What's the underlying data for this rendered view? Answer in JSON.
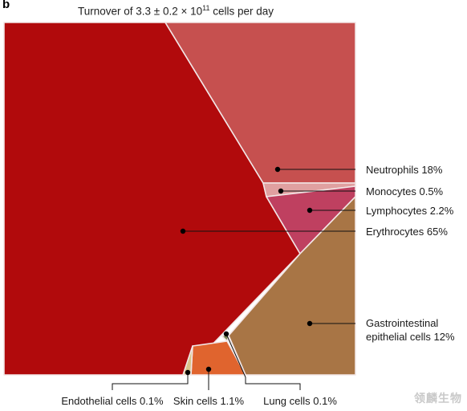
{
  "panel_label": "b",
  "chart_data": {
    "type": "treemap",
    "title": {
      "prefix": "Turnover of 3.3 ± 0.2 × 10",
      "exponent": "11",
      "suffix": " cells per day"
    },
    "categories": [
      "Erythrocytes",
      "Neutrophils",
      "Monocytes",
      "Lymphocytes",
      "Gastrointestinal epithelial cells",
      "Lung cells",
      "Skin cells",
      "Endothelial cells"
    ],
    "values": [
      65,
      18,
      0.5,
      2.2,
      12,
      0.1,
      1.1,
      0.1
    ],
    "unit": "%",
    "labels": [
      "Erythrocytes 65%",
      "Neutrophils 18%",
      "Monocytes 0.5%",
      "Lymphocytes 2.2%",
      "Gastrointestinal epithelial cells 12%",
      "Lung cells 0.1%",
      "Skin cells 1.1%",
      "Endothelial cells 0.1%"
    ],
    "label_lines": [
      [
        "Erythrocytes 65%"
      ],
      [
        "Neutrophils 18%"
      ],
      [
        "Monocytes 0.5%"
      ],
      [
        "Lymphocytes 2.2%"
      ],
      [
        "Gastrointestinal",
        "epithelial cells 12%"
      ],
      [
        "Lung cells 0.1%"
      ],
      [
        "Skin cells 1.1%"
      ],
      [
        "Endothelial cells 0.1%"
      ]
    ],
    "colors": [
      "#b10a0c",
      "#c6504f",
      "#e0a0a0",
      "#bf4060",
      "#a87545",
      "#7e8a58",
      "#e0642e",
      "#d9c48a"
    ],
    "legend": "none"
  },
  "watermark": "领麟生物"
}
